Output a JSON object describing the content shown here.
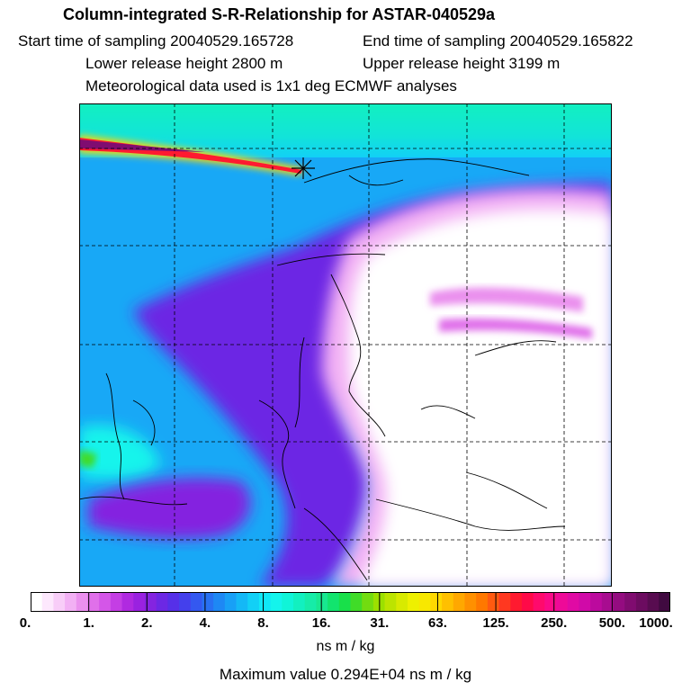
{
  "header": {
    "title": "Column-integrated S-R-Relationship for ASTAR-040529a",
    "start_time": "Start time of sampling 20040529.165728",
    "end_time": "End time of sampling 20040529.165822",
    "lower_height": "Lower release height 2800 m",
    "upper_height": "Upper release height 3199 m",
    "met_data": "Meteorological data used is 1x1 deg ECMWF analyses"
  },
  "colorbar": {
    "ticks": [
      "0.",
      "1.",
      "2.",
      "4.",
      "8.",
      "16.",
      "31.",
      "63.",
      "125.",
      "250.",
      "500.",
      "1000."
    ],
    "colors": [
      "#ffffff",
      "#fde8fd",
      "#f8cdf8",
      "#f2b0f4",
      "#ea90ee",
      "#e070ea",
      "#d456e8",
      "#c43ee4",
      "#b02ae0",
      "#9a22e0",
      "#8424e0",
      "#6c28e4",
      "#5630e8",
      "#4440ec",
      "#3458f0",
      "#2870f2",
      "#1e88f4",
      "#18a0f6",
      "#14b8f6",
      "#12d0f6",
      "#10e8f6",
      "#14f4ec",
      "#10f4d8",
      "#12f0c0",
      "#16eca8",
      "#18e890",
      "#12e46e",
      "#18e04a",
      "#40dc28",
      "#72dc10",
      "#9ce000",
      "#bce400",
      "#d8ea00",
      "#eef000",
      "#f8e800",
      "#ffd800",
      "#ffc000",
      "#ffa800",
      "#ff9000",
      "#ff7800",
      "#ff5a10",
      "#ff3820",
      "#ff1a30",
      "#ff0a48",
      "#ff0a6c",
      "#fa0a88",
      "#ee0a98",
      "#e00aa4",
      "#d00aa8",
      "#bc0a9e",
      "#a80c90",
      "#940c80",
      "#800c70",
      "#6c0c60",
      "#580c50",
      "#400a40"
    ],
    "unit": "ns m / kg"
  },
  "footer": {
    "max_value": "Maximum value  0.294E+04 ns m / kg"
  }
}
